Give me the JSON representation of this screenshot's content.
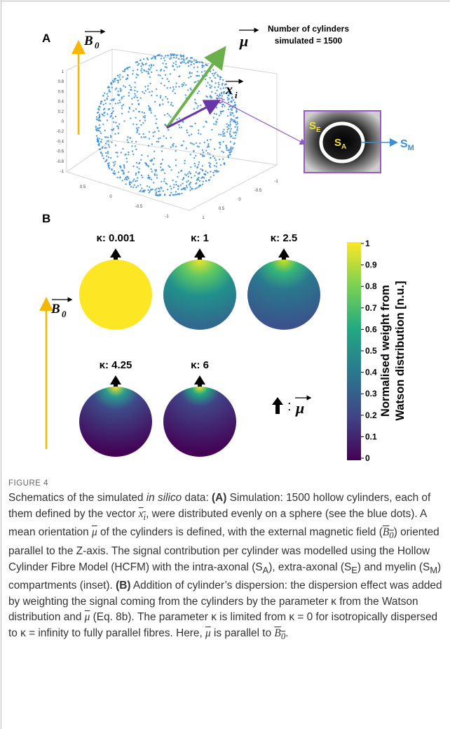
{
  "figure": {
    "panel_a": {
      "label": "A",
      "field_symbol": "B",
      "field_subscript": "0",
      "mean_symbol": "μ",
      "vector_symbol": "x",
      "vector_subscript": "i",
      "count_note": [
        "Number of cylinders",
        "simulated = 1500"
      ],
      "z_ticks": [
        "1",
        "0.8",
        "0.6",
        "0.4",
        "0.2",
        "0",
        "-0.2",
        "-0.4",
        "-0.6",
        "-0.8",
        "-1"
      ],
      "x_ticks": [
        "0.5",
        "0",
        "-0.5",
        "-1"
      ],
      "y_ticks": [
        "1",
        "0.5",
        "0",
        "-0.5",
        "-1"
      ],
      "inset": {
        "extra": "S",
        "extra_sub": "E",
        "intra": "S",
        "intra_sub": "A",
        "myelin": "S",
        "myelin_sub": "M"
      }
    },
    "panel_b": {
      "label": "B",
      "field_symbol": "B",
      "field_subscript": "0",
      "spheres": [
        {
          "kappa_label": "κ: 0.001"
        },
        {
          "kappa_label": "κ: 1"
        },
        {
          "kappa_label": "κ: 2.5"
        },
        {
          "kappa_label": "κ: 4.25"
        },
        {
          "kappa_label": "κ: 6"
        }
      ],
      "legend_separator": ":",
      "legend_symbol": "μ",
      "colorbar": {
        "ticks": [
          "1",
          "0.9",
          "0.8",
          "0.7",
          "0.6",
          "0.5",
          "0.4",
          "0.3",
          "0.2",
          "0.1",
          "0"
        ],
        "label": [
          "Normalised weight from",
          "Watson distribution [n.u.]"
        ]
      }
    }
  },
  "caption": {
    "label": "FIGURE 4",
    "parts": [
      "Schematics of the simulated ",
      "in silico",
      " data: ",
      "(A)",
      " Simulation: 1500 hollow cylinders, each of them defined by the vector ",
      "x",
      "i",
      ", were distributed evenly on a sphere (see the blue dots). A mean orientation ",
      "μ",
      " of the cylinders is defined, with the external magnetic field (",
      "B",
      "0",
      ") oriented parallel to the Z-axis. The signal contribution per cylinder was modelled using the Hollow Cylinder Fibre Model (HCFM) with the intra-axonal (S",
      "A",
      "), extra-axonal (S",
      "E",
      ") and myelin (S",
      "M",
      ") compartments (inset). ",
      "(B)",
      " Addition of cylinder’s dispersion: the dispersion effect was added by weighting the signal coming from the cylinders by the parameter κ from the Watson distribution and ",
      "μ",
      " (Eq. 8b). The parameter κ is limited from κ = 0 for isotropically dispersed to κ = infinity to fully parallel fibres. Here, ",
      "μ",
      " is parallel to ",
      "B",
      "0",
      "."
    ]
  }
}
